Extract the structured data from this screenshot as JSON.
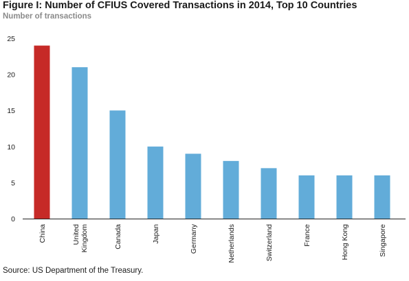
{
  "title": "Figure I: Number of CFIUS Covered Transactions in 2014, Top 10 Countries",
  "subtitle": "Number of transactions",
  "source": "Source: US Department of the Treasury.",
  "colors": {
    "highlight": "#c62a27",
    "bar": "#62acd9",
    "axis": "#222222"
  },
  "chart_data": {
    "type": "bar",
    "title": "Figure I: Number of CFIUS Covered Transactions in 2014, Top 10 Countries",
    "ylabel": "Number of transactions",
    "xlabel": "",
    "categories": [
      "China",
      "United Kingdom",
      "Canada",
      "Japan",
      "Germany",
      "Netherlands",
      "Switzerland",
      "France",
      "Hong Kong",
      "Singapore"
    ],
    "category_lines": [
      [
        "China"
      ],
      [
        "United",
        "Kingdom"
      ],
      [
        "Canada"
      ],
      [
        "Japan"
      ],
      [
        "Germany"
      ],
      [
        "Netherlands"
      ],
      [
        "Switzerland"
      ],
      [
        "France"
      ],
      [
        "Hong Kong"
      ],
      [
        "Singapore"
      ]
    ],
    "values": [
      24,
      21,
      15,
      10,
      9,
      8,
      7,
      6,
      6,
      6
    ],
    "highlight_index": 0,
    "ylim": [
      0,
      25
    ],
    "yticks": [
      0,
      5,
      10,
      15,
      20,
      25
    ],
    "grid": false,
    "legend": "none"
  }
}
